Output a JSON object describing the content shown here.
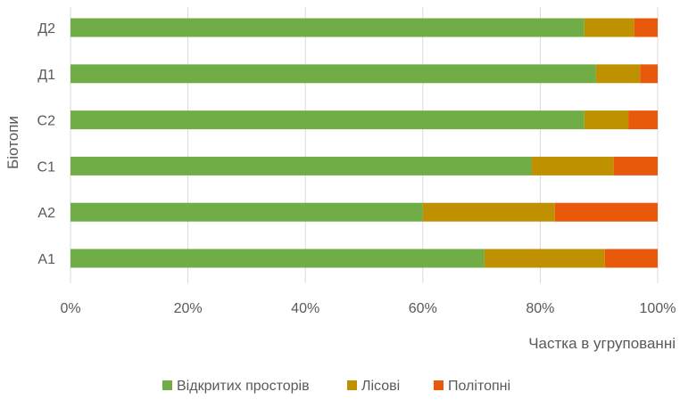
{
  "chart_data": {
    "type": "bar",
    "orientation": "horizontal",
    "stacked": "percent",
    "categories": [
      "Д2",
      "Д1",
      "С2",
      "С1",
      "А2",
      "А1"
    ],
    "series": [
      {
        "name": "Відкритих просторів",
        "color": "#70ad47",
        "values": [
          87.5,
          89.5,
          87.5,
          78.5,
          60.0,
          70.5
        ]
      },
      {
        "name": "Лісові",
        "color": "#bf9000",
        "values": [
          8.5,
          7.5,
          7.5,
          14.0,
          22.5,
          20.5
        ]
      },
      {
        "name": "Політопні",
        "color": "#e8590c",
        "values": [
          4.0,
          3.0,
          5.0,
          7.5,
          17.5,
          9.0
        ]
      }
    ],
    "xlim": [
      0,
      100
    ],
    "xticks": [
      "0%",
      "20%",
      "40%",
      "60%",
      "80%",
      "100%"
    ],
    "xlabel": "Частка в угрупованні",
    "ylabel": "Біотопи",
    "grid": "vertical",
    "legend_position": "bottom"
  }
}
